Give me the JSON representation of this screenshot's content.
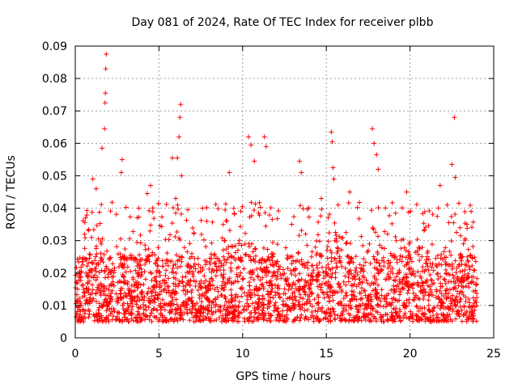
{
  "chart_data": {
    "type": "scatter",
    "title": "Day 081 of 2024, Rate Of TEC Index for receiver plbb",
    "xlabel": "GPS time / hours",
    "ylabel": "ROTI / TECUs",
    "xlim": [
      0,
      25
    ],
    "ylim": [
      0,
      0.09
    ],
    "xticks": [
      "0",
      "5",
      "10",
      "15",
      "20",
      "25"
    ],
    "yticks": [
      "0",
      "0.01",
      "0.02",
      "0.03",
      "0.04",
      "0.05",
      "0.06",
      "0.07",
      "0.08",
      "0.09"
    ],
    "grid": true,
    "marker": "+",
    "color": "#ff0000",
    "coverage_hours": [
      0,
      24
    ],
    "typical_band": [
      0.005,
      0.025
    ],
    "peaks": [
      {
        "x": 0.55,
        "y": 0.032
      },
      {
        "x": 1.05,
        "y": 0.049
      },
      {
        "x": 1.25,
        "y": 0.046
      },
      {
        "x": 1.6,
        "y": 0.0585
      },
      {
        "x": 1.75,
        "y": 0.0645
      },
      {
        "x": 1.78,
        "y": 0.0725
      },
      {
        "x": 1.8,
        "y": 0.0755
      },
      {
        "x": 1.82,
        "y": 0.083
      },
      {
        "x": 1.85,
        "y": 0.0875
      },
      {
        "x": 2.75,
        "y": 0.051
      },
      {
        "x": 2.8,
        "y": 0.055
      },
      {
        "x": 3.8,
        "y": 0.04
      },
      {
        "x": 4.3,
        "y": 0.0445
      },
      {
        "x": 4.5,
        "y": 0.047
      },
      {
        "x": 5.8,
        "y": 0.0555
      },
      {
        "x": 6.0,
        "y": 0.043
      },
      {
        "x": 6.1,
        "y": 0.0555
      },
      {
        "x": 6.2,
        "y": 0.062
      },
      {
        "x": 6.25,
        "y": 0.068
      },
      {
        "x": 6.3,
        "y": 0.072
      },
      {
        "x": 6.35,
        "y": 0.05
      },
      {
        "x": 7.6,
        "y": 0.04
      },
      {
        "x": 9.2,
        "y": 0.051
      },
      {
        "x": 10.35,
        "y": 0.062
      },
      {
        "x": 10.5,
        "y": 0.0595
      },
      {
        "x": 10.7,
        "y": 0.0545
      },
      {
        "x": 11.3,
        "y": 0.062
      },
      {
        "x": 11.4,
        "y": 0.059
      },
      {
        "x": 13.4,
        "y": 0.0545
      },
      {
        "x": 13.5,
        "y": 0.051
      },
      {
        "x": 15.3,
        "y": 0.0635
      },
      {
        "x": 15.35,
        "y": 0.0605
      },
      {
        "x": 15.4,
        "y": 0.0525
      },
      {
        "x": 15.45,
        "y": 0.049
      },
      {
        "x": 17.75,
        "y": 0.0645
      },
      {
        "x": 17.85,
        "y": 0.06
      },
      {
        "x": 18.0,
        "y": 0.0565
      },
      {
        "x": 18.1,
        "y": 0.052
      },
      {
        "x": 19.8,
        "y": 0.045
      },
      {
        "x": 21.8,
        "y": 0.047
      },
      {
        "x": 22.5,
        "y": 0.0535
      },
      {
        "x": 22.65,
        "y": 0.068
      },
      {
        "x": 22.7,
        "y": 0.0495
      },
      {
        "x": 16.4,
        "y": 0.045
      },
      {
        "x": 14.7,
        "y": 0.043
      }
    ]
  }
}
